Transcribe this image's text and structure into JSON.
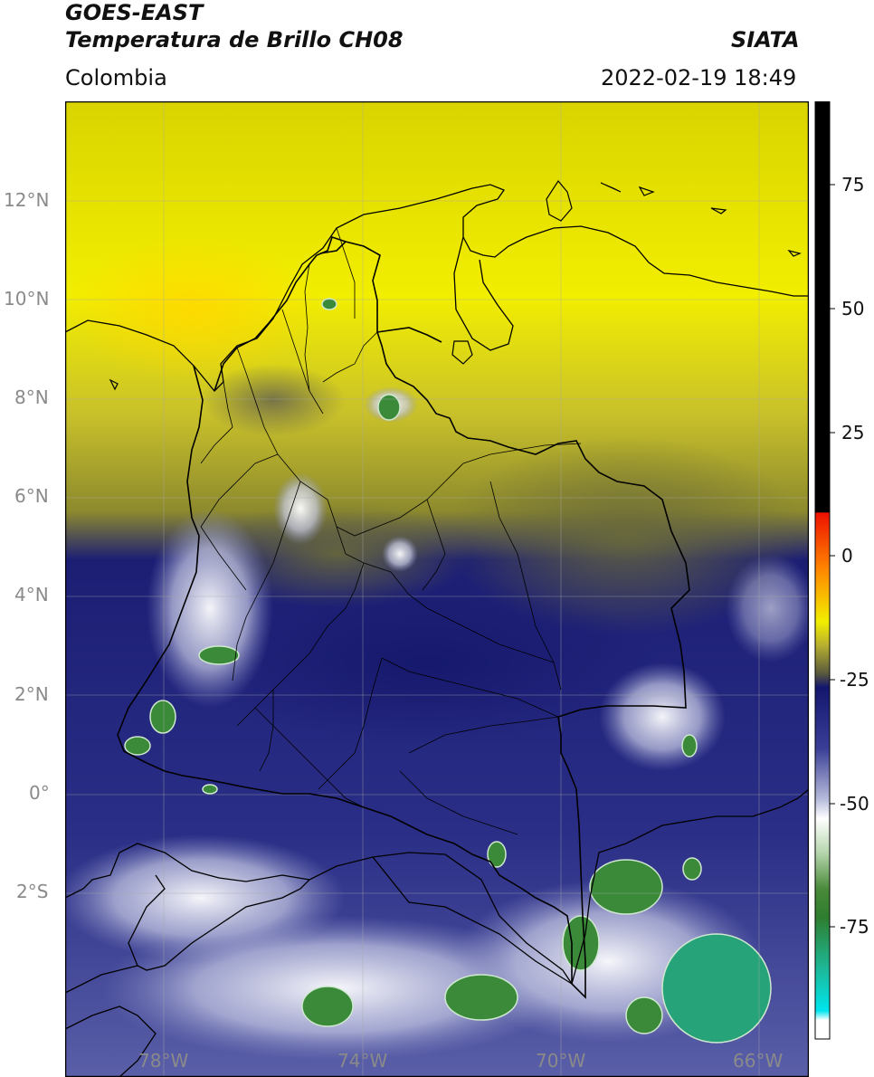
{
  "header": {
    "line1": "GOES-EAST",
    "line2": "Temperatura de Brillo CH08",
    "agency": "SIATA",
    "region": "Colombia",
    "datetime": "2022-02-19 18:49"
  },
  "map": {
    "lat_labels": [
      "12°N",
      "10°N",
      "8°N",
      "6°N",
      "4°N",
      "2°N",
      "0°",
      "2°S"
    ],
    "lon_labels": [
      "78°W",
      "74°W",
      "70°W",
      "66°W"
    ],
    "extent": {
      "lon_min": -80.0,
      "lon_max": -65.0,
      "lat_min": -5.0,
      "lat_max": 14.0
    }
  },
  "colorbar": {
    "labels": [
      "75",
      "50",
      "25",
      "0",
      "-25",
      "-50",
      "-75"
    ],
    "range": [
      -95,
      90
    ],
    "colors": {
      "black": "#000000",
      "red": "#ff0000",
      "orange": "#ff9900",
      "yellow": "#f2ee00",
      "olive": "#9a9a2a",
      "navy": "#14166e",
      "lavender": "#b9bddc",
      "white": "#ffffff",
      "green": "#2e7d2e",
      "teal": "#1fb38e",
      "cyan": "#00e5ee"
    }
  }
}
